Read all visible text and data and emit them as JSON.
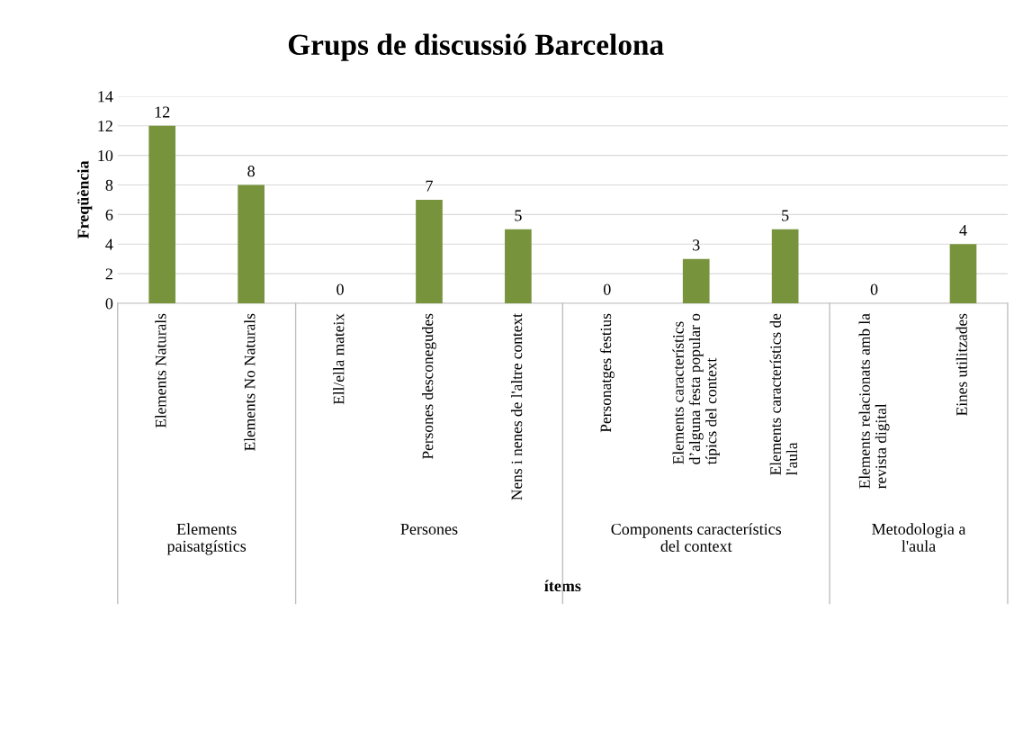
{
  "chart_data": {
    "type": "bar",
    "title": "Grups de discussió Barcelona",
    "xlabel": "ítems",
    "ylabel": "Freqüència",
    "categories": [
      "Elements Naturals",
      "Elements No Naturals",
      "Ell/ella mateix",
      "Persones desconegudes",
      "Nens i nenes de l'altre context",
      "Personatges festius",
      "Elements característics\nd’alguna festa popular o\ntípics del context",
      "Elements característics de\nl'aula",
      "Elements relacionats amb la\nrevista digital",
      "Eines utilitzades"
    ],
    "values": [
      12,
      8,
      0,
      7,
      5,
      0,
      3,
      5,
      0,
      4
    ],
    "color": "#77933c",
    "ylim": [
      0,
      14
    ],
    "yticks": [
      0,
      2,
      4,
      6,
      8,
      10,
      12,
      14
    ],
    "grid": "y",
    "data_labels": true,
    "annotations": [
      "Elements\npaisatgístics",
      "Persones",
      "Components característics\ndel context",
      "Metodologia a\nl'aula"
    ]
  }
}
